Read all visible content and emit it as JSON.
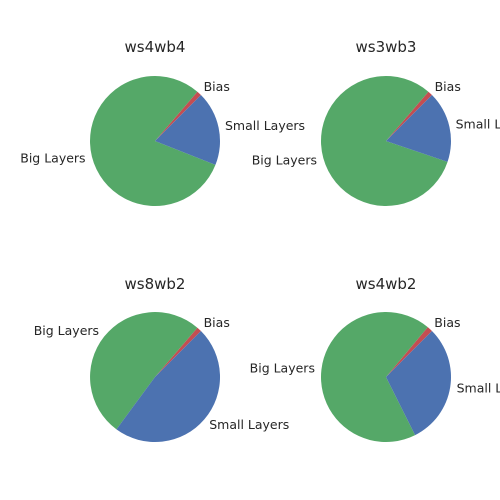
{
  "chart_data": [
    {
      "type": "pie",
      "title": "ws4wb4",
      "slices": [
        {
          "label": "Bias",
          "value": 1.2,
          "color": "#C44E52"
        },
        {
          "label": "Big Layers",
          "value": 80.3,
          "color": "#55A868"
        },
        {
          "label": "Small Layers",
          "value": 18.5,
          "color": "#4C72B0"
        }
      ]
    },
    {
      "type": "pie",
      "title": "ws3wb3",
      "slices": [
        {
          "label": "Bias",
          "value": 1.2,
          "color": "#C44E52"
        },
        {
          "label": "Big Layers",
          "value": 81.1,
          "color": "#55A868"
        },
        {
          "label": "Small Layers",
          "value": 17.7,
          "color": "#4C72B0"
        }
      ]
    },
    {
      "type": "pie",
      "title": "ws8wb2",
      "slices": [
        {
          "label": "Bias",
          "value": 1.2,
          "color": "#C44E52"
        },
        {
          "label": "Big Layers",
          "value": 51.2,
          "color": "#55A868"
        },
        {
          "label": "Small Layers",
          "value": 47.6,
          "color": "#4C72B0"
        }
      ]
    },
    {
      "type": "pie",
      "title": "ws4wb2",
      "slices": [
        {
          "label": "Bias",
          "value": 1.4,
          "color": "#C44E52"
        },
        {
          "label": "Big Layers",
          "value": 68.5,
          "color": "#55A868"
        },
        {
          "label": "Small Layers",
          "value": 30.1,
          "color": "#4C72B0"
        }
      ]
    }
  ]
}
